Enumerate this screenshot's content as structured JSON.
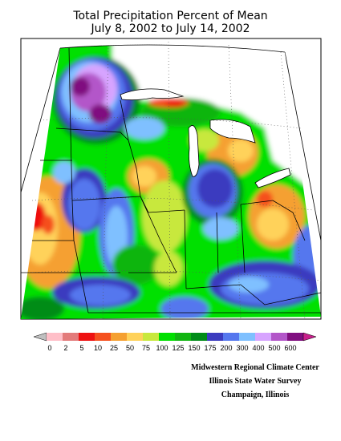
{
  "title": {
    "line1": "Total Precipitation Percent of Mean",
    "line2": "July 8, 2002 to July 14, 2002"
  },
  "legend": {
    "labels": [
      "0",
      "2",
      "5",
      "10",
      "25",
      "50",
      "75",
      "100",
      "125",
      "150",
      "175",
      "200",
      "300",
      "400",
      "500",
      "600"
    ],
    "colors": [
      "#ffbfc8",
      "#e37b7b",
      "#ee1111",
      "#f5501e",
      "#f5a030",
      "#ffd25a",
      "#c8e83c",
      "#00e000",
      "#11b511",
      "#008c18",
      "#3b3bbf",
      "#5577ee",
      "#7fc0ff",
      "#d7a4ff",
      "#b356c9",
      "#800f80"
    ],
    "low_color": "#c0c0c0",
    "high_color": "#c8208c"
  },
  "credits": {
    "line1": "Midwestern Regional Climate Center",
    "line2": "Illinois State Water Survey",
    "line3": "Champaign, Illinois"
  }
}
